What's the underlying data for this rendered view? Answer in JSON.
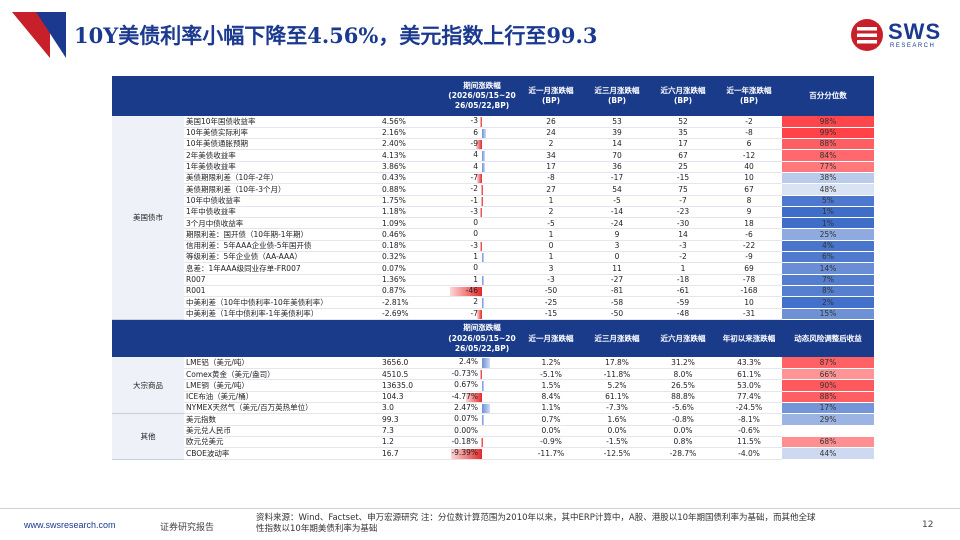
{
  "title": "10Y美债利率小幅下降至4.56%，美元指数上行至99.3",
  "logo": {
    "text": "SWS",
    "sub": "RESEARCH"
  },
  "table1": {
    "headers": [
      "期间涨跌幅\n(2026/05/15~20\n26/05/22,BP)",
      "近一月涨跌幅\n(BP)",
      "近三月涨跌幅\n(BP)",
      "近六月涨跌幅\n(BP)",
      "近一年涨跌幅\n(BP)",
      "百分分位数"
    ],
    "group": "美国债市",
    "rows": [
      {
        "name": "美国10年国债收益率",
        "value": "4.56%",
        "chg": "-3",
        "chg_num": -3,
        "m1": "26",
        "m3": "53",
        "m6": "52",
        "y1": "-2",
        "pct": "98%",
        "pct_num": 98
      },
      {
        "name": "10年美债实际利率",
        "value": "2.16%",
        "chg": "6",
        "chg_num": 6,
        "m1": "24",
        "m3": "39",
        "m6": "35",
        "y1": "-8",
        "pct": "99%",
        "pct_num": 99
      },
      {
        "name": "10年美债通胀预期",
        "value": "2.40%",
        "chg": "-9",
        "chg_num": -9,
        "m1": "2",
        "m3": "14",
        "m6": "17",
        "y1": "6",
        "pct": "88%",
        "pct_num": 88
      },
      {
        "name": "2年美债收益率",
        "value": "4.13%",
        "chg": "4",
        "chg_num": 4,
        "m1": "34",
        "m3": "70",
        "m6": "67",
        "y1": "-12",
        "pct": "84%",
        "pct_num": 84
      },
      {
        "name": "1年美债收益率",
        "value": "3.86%",
        "chg": "4",
        "chg_num": 4,
        "m1": "17",
        "m3": "36",
        "m6": "25",
        "y1": "40",
        "pct": "77%",
        "pct_num": 77
      },
      {
        "name": "美债期限利差（10年-2年）",
        "value": "0.43%",
        "chg": "-7",
        "chg_num": -7,
        "m1": "-8",
        "m3": "-17",
        "m6": "-15",
        "y1": "10",
        "pct": "38%",
        "pct_num": 38
      },
      {
        "name": "美债期限利差（10年-3个月）",
        "value": "0.88%",
        "chg": "-2",
        "chg_num": -2,
        "m1": "27",
        "m3": "54",
        "m6": "75",
        "y1": "67",
        "pct": "48%",
        "pct_num": 48
      },
      {
        "name": "10年中债收益率",
        "value": "1.75%",
        "chg": "-1",
        "chg_num": -1,
        "m1": "1",
        "m3": "-5",
        "m6": "-7",
        "y1": "8",
        "pct": "5%",
        "pct_num": 5
      },
      {
        "name": "1年中债收益率",
        "value": "1.18%",
        "chg": "-3",
        "chg_num": -3,
        "m1": "2",
        "m3": "-14",
        "m6": "-23",
        "y1": "9",
        "pct": "1%",
        "pct_num": 1
      },
      {
        "name": "3个月中债收益率",
        "value": "1.09%",
        "chg": "0",
        "chg_num": 0,
        "m1": "-5",
        "m3": "-24",
        "m6": "-30",
        "y1": "18",
        "pct": "1%",
        "pct_num": 1
      },
      {
        "name": "期限利差：国开债（10年期-1年期）",
        "value": "0.46%",
        "chg": "0",
        "chg_num": 0,
        "m1": "1",
        "m3": "9",
        "m6": "14",
        "y1": "-6",
        "pct": "25%",
        "pct_num": 25
      },
      {
        "name": "信用利差：5年AAA企业债-5年国开债",
        "value": "0.18%",
        "chg": "-3",
        "chg_num": -3,
        "m1": "0",
        "m3": "3",
        "m6": "-3",
        "y1": "-22",
        "pct": "4%",
        "pct_num": 4
      },
      {
        "name": "等级利差：5年企业债（AA-AAA）",
        "value": "0.32%",
        "chg": "1",
        "chg_num": 1,
        "m1": "1",
        "m3": "0",
        "m6": "-2",
        "y1": "-9",
        "pct": "6%",
        "pct_num": 6
      },
      {
        "name": "息差：1年AAA级同业存单-FR007",
        "value": "0.07%",
        "chg": "0",
        "chg_num": 0,
        "m1": "3",
        "m3": "11",
        "m6": "1",
        "y1": "69",
        "pct": "14%",
        "pct_num": 14
      },
      {
        "name": "R007",
        "value": "1.36%",
        "chg": "1",
        "chg_num": 1,
        "m1": "-3",
        "m3": "-27",
        "m6": "-18",
        "y1": "-78",
        "pct": "7%",
        "pct_num": 7
      },
      {
        "name": "R001",
        "value": "0.87%",
        "chg": "-46",
        "chg_num": -46,
        "m1": "-50",
        "m3": "-81",
        "m6": "-61",
        "y1": "-168",
        "pct": "8%",
        "pct_num": 8
      },
      {
        "name": "中美利差（10年中债利率-10年美债利率）",
        "value": "-2.81%",
        "chg": "2",
        "chg_num": 2,
        "m1": "-25",
        "m3": "-58",
        "m6": "-59",
        "y1": "10",
        "pct": "2%",
        "pct_num": 2
      },
      {
        "name": "中美利差（1年中债利率-1年美债利率）",
        "value": "-2.69%",
        "chg": "-7",
        "chg_num": -7,
        "m1": "-15",
        "m3": "-50",
        "m6": "-48",
        "y1": "-31",
        "pct": "15%",
        "pct_num": 15
      }
    ]
  },
  "table2": {
    "headers": [
      "期间涨跌幅\n(2026/05/15~20\n26/05/22,BP)",
      "近一月涨跌幅",
      "近三月涨跌幅",
      "近六月涨跌幅",
      "年初以来涨跌幅",
      "动态风险调整后收益"
    ],
    "groups": [
      {
        "label": "大宗商品",
        "rows": [
          {
            "name": "LME铝（美元/吨）",
            "value": "3656.0",
            "chg": "2.4%",
            "chg_num": 2.4,
            "m1": "1.2%",
            "m3": "17.8%",
            "m6": "31.2%",
            "y1": "43.3%",
            "pct": "87%",
            "pct_num": 87
          },
          {
            "name": "Comex黄金（美元/盎司）",
            "value": "4510.5",
            "chg": "-0.73%",
            "chg_num": -0.73,
            "m1": "-5.1%",
            "m3": "-11.8%",
            "m6": "8.0%",
            "y1": "61.1%",
            "pct": "66%",
            "pct_num": 66
          },
          {
            "name": "LME铜（美元/吨）",
            "value": "13635.0",
            "chg": "0.67%",
            "chg_num": 0.67,
            "m1": "1.5%",
            "m3": "5.2%",
            "m6": "26.5%",
            "y1": "53.0%",
            "pct": "90%",
            "pct_num": 90
          },
          {
            "name": "ICE布油（美元/桶）",
            "value": "104.3",
            "chg": "-4.77%",
            "chg_num": -4.77,
            "m1": "8.4%",
            "m3": "61.1%",
            "m6": "88.8%",
            "y1": "77.4%",
            "pct": "88%",
            "pct_num": 88
          },
          {
            "name": "NYMEX天然气（美元/百万英热单位）",
            "value": "3.0",
            "chg": "2.47%",
            "chg_num": 2.47,
            "m1": "1.1%",
            "m3": "-7.3%",
            "m6": "-5.6%",
            "y1": "-24.5%",
            "pct": "17%",
            "pct_num": 17
          }
        ]
      },
      {
        "label": "其他",
        "rows": [
          {
            "name": "美元指数",
            "value": "99.3",
            "chg": "0.07%",
            "chg_num": 0.07,
            "m1": "0.7%",
            "m3": "1.6%",
            "m6": "-0.8%",
            "y1": "-8.1%",
            "pct": "29%",
            "pct_num": 29
          },
          {
            "name": "美元兑人民币",
            "value": "7.3",
            "chg": "0.00%",
            "chg_num": 0,
            "m1": "0.0%",
            "m3": "0.0%",
            "m6": "0.0%",
            "y1": "-0.6%",
            "pct": "",
            "pct_num": null
          },
          {
            "name": "欧元兑美元",
            "value": "1.2",
            "chg": "-0.18%",
            "chg_num": -0.18,
            "m1": "-0.9%",
            "m3": "-1.5%",
            "m6": "0.8%",
            "y1": "11.5%",
            "pct": "68%",
            "pct_num": 68
          },
          {
            "name": "CBOE波动率",
            "value": "16.7",
            "chg": "-9.39%",
            "chg_num": -9.39,
            "m1": "-11.7%",
            "m3": "-12.5%",
            "m6": "-28.7%",
            "y1": "-4.0%",
            "pct": "44%",
            "pct_num": 44
          }
        ]
      }
    ]
  },
  "footer": {
    "url": "www.swsresearch.com",
    "label": "证券研究报告",
    "source": "资料来源：Wind、Factset、申万宏源研究 注：分位数计算范围为2010年以来，其中ERP计算中，A股、港股以10年期国债利率为基础，而其他全球性指数以10年期美债利率为基础",
    "page": "12"
  },
  "colors": {
    "navy": "#1a3a8a",
    "red": "#c8202a",
    "neg_bar": "#e32a2a",
    "pos_bar": "#6f8fd6",
    "pct_high": "#e8424a",
    "pct_low": "#3d6cc8"
  }
}
